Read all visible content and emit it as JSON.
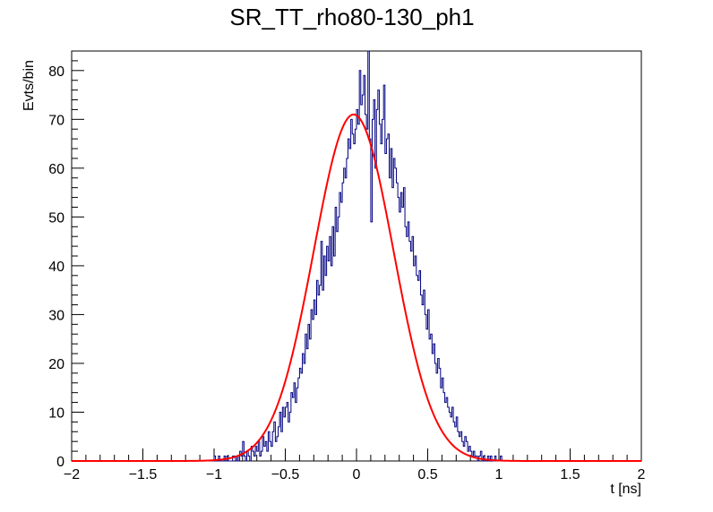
{
  "chart_data": {
    "type": "bar",
    "title": "SR_TT_rho80-130_ph1",
    "xlabel": "t [ns]",
    "ylabel": "Evts/bin",
    "xlim": [
      -2,
      2
    ],
    "ylim": [
      0,
      84
    ],
    "x_ticks": [
      -2,
      -1.5,
      -1,
      -0.5,
      0,
      0.5,
      1,
      1.5,
      2
    ],
    "x_tick_labels": [
      "−2",
      "−1.5",
      "−1",
      "−0.5",
      "0",
      "0.5",
      "1",
      "1.5",
      "2"
    ],
    "y_ticks": [
      0,
      10,
      20,
      30,
      40,
      50,
      60,
      70,
      80
    ],
    "y_tick_labels": [
      "0",
      "10",
      "20",
      "30",
      "40",
      "50",
      "60",
      "70",
      "80"
    ],
    "grid": false,
    "histogram": {
      "name": "data",
      "color": "#000080",
      "bin_width": 0.01,
      "x_start": -1.0,
      "values": [
        1,
        0,
        0,
        1,
        0,
        0,
        0,
        1,
        0,
        1,
        0,
        0,
        0,
        1,
        1,
        0,
        1,
        0,
        2,
        1,
        4,
        1,
        0,
        2,
        1,
        0,
        3,
        2,
        1,
        3,
        2,
        4,
        1,
        2,
        5,
        3,
        4,
        2,
        6,
        4,
        3,
        6,
        8,
        4,
        5,
        7,
        10,
        6,
        11,
        9,
        11,
        12,
        8,
        10,
        14,
        13,
        16,
        12,
        15,
        17,
        19,
        18,
        22,
        20,
        26,
        23,
        28,
        25,
        31,
        29,
        33,
        30,
        37,
        34,
        36,
        45,
        35,
        42,
        38,
        44,
        41,
        46,
        40,
        48,
        42,
        52,
        47,
        50,
        55,
        53,
        57,
        60,
        58,
        62,
        66,
        64,
        70,
        67,
        65,
        68,
        72,
        69,
        80,
        73,
        75,
        79,
        71,
        68,
        84,
        66,
        49,
        70,
        74,
        60,
        72,
        76,
        69,
        65,
        70,
        77,
        63,
        66,
        67,
        58,
        64,
        56,
        62,
        60,
        57,
        54,
        51,
        55,
        52,
        56,
        48,
        46,
        49,
        45,
        43,
        46,
        40,
        42,
        38,
        37,
        39,
        34,
        32,
        35,
        30,
        27,
        31,
        25,
        26,
        22,
        24,
        20,
        18,
        21,
        19,
        15,
        17,
        14,
        12,
        13,
        11,
        10,
        9,
        11,
        8,
        7,
        9,
        6,
        5,
        6,
        4,
        3,
        5,
        4,
        2,
        3,
        2,
        1,
        2,
        1,
        1,
        0,
        1,
        2,
        0,
        1,
        0,
        0,
        1,
        0,
        1,
        0,
        0,
        1,
        0,
        0,
        0,
        1,
        0,
        0,
        0
      ]
    },
    "fit": {
      "name": "fit",
      "color": "#ff0000",
      "function": "gaussian",
      "amplitude": 71,
      "mean": -0.02,
      "sigma": 0.28
    }
  }
}
